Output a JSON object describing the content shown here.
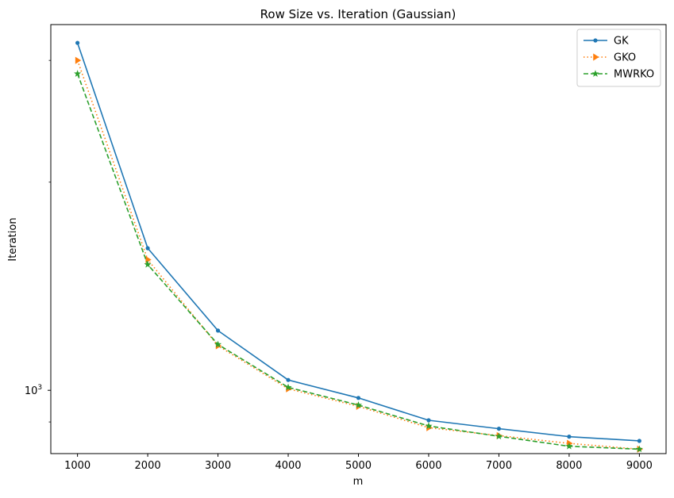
{
  "chart_data": {
    "type": "line",
    "title": "Row Size vs. Iteration (Gaussian)",
    "xlabel": "m",
    "ylabel": "Iteration",
    "x": [
      1000,
      2000,
      3000,
      4000,
      5000,
      6000,
      7000,
      8000,
      9000
    ],
    "x_ticks": [
      "1000",
      "2000",
      "3000",
      "4000",
      "5000",
      "6000",
      "7000",
      "8000",
      "9000"
    ],
    "y_scale": "log",
    "ylim": [
      810,
      3380
    ],
    "y_major_tick": {
      "value": 1000,
      "base": "10",
      "exponent": "3"
    },
    "y_minor_ticks": [
      900,
      2000,
      3000
    ],
    "xlim": [
      620,
      9380
    ],
    "grid": false,
    "legend_position": "top-right",
    "series": [
      {
        "name": "GK",
        "color": "#1f77b4",
        "marker": "point",
        "linestyle": "solid",
        "values": [
          3180,
          1605,
          1220,
          1035,
          975,
          905,
          880,
          857,
          845
        ]
      },
      {
        "name": "GKO",
        "color": "#ff7f0e",
        "marker": "triangle-right",
        "linestyle": "dotted",
        "values": [
          3000,
          1545,
          1160,
          1005,
          948,
          883,
          860,
          838,
          822
        ]
      },
      {
        "name": "MWRKO",
        "color": "#2ca02c",
        "marker": "star",
        "linestyle": "dashed",
        "values": [
          2870,
          1520,
          1165,
          1010,
          952,
          888,
          858,
          830,
          822
        ]
      }
    ]
  }
}
